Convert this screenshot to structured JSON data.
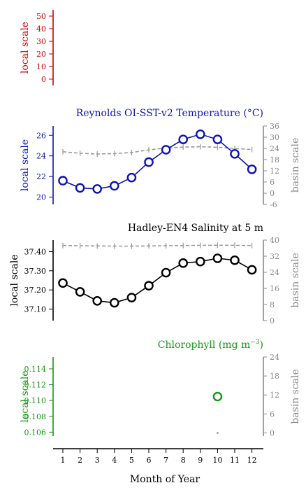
{
  "figure": {
    "xlabel": "Month of Year",
    "months": [
      "1",
      "2",
      "3",
      "4",
      "5",
      "6",
      "7",
      "8",
      "9",
      "10",
      "11",
      "12"
    ]
  },
  "chart_data": [
    {
      "type": "line",
      "id": "empty",
      "title": "",
      "ylabel_left": "local scale",
      "left_color": "#cc0000",
      "left_ylim": [
        -5,
        55
      ],
      "left_ticks": [
        0,
        10,
        20,
        30,
        40,
        50
      ],
      "x": [
        1,
        2,
        3,
        4,
        5,
        6,
        7,
        8,
        9,
        10,
        11,
        12
      ],
      "series": []
    },
    {
      "type": "line",
      "id": "sst",
      "title": "Reynolds OI-SST-v2 Temperature (°C)",
      "ylabel_left": "local scale",
      "ylabel_right": "basin scale",
      "left_color": "#0a14b4",
      "right_color": "#888888",
      "left_ylim": [
        19.3,
        26.9
      ],
      "left_ticks": [
        20,
        22,
        24,
        26
      ],
      "right_ylim": [
        -6,
        36
      ],
      "right_ticks": [
        -6,
        0,
        6,
        12,
        18,
        24,
        30,
        36
      ],
      "x": [
        1,
        2,
        3,
        4,
        5,
        6,
        7,
        8,
        9,
        10,
        11,
        12
      ],
      "local": [
        21.6,
        20.9,
        20.8,
        21.1,
        21.9,
        23.4,
        24.6,
        25.6,
        26.1,
        25.6,
        24.2,
        22.7
      ],
      "basin": [
        22.2,
        21.4,
        21.0,
        21.2,
        21.8,
        23.2,
        24.2,
        24.7,
        24.9,
        24.6,
        24.0,
        23.4
      ]
    },
    {
      "type": "line",
      "id": "salinity",
      "title": "Hadley-EN4 Salinity at 5 m",
      "ylabel_left": "local scale",
      "ylabel_right": "basin scale",
      "left_color": "#000000",
      "right_color": "#888888",
      "left_ylim": [
        37.04,
        37.46
      ],
      "left_ticks": [
        37.1,
        37.2,
        37.3,
        37.4
      ],
      "left_ticklabels": [
        "37.10",
        "37.20",
        "37.30",
        "37.40"
      ],
      "right_ylim": [
        0,
        40
      ],
      "right_ticks": [
        0,
        8,
        16,
        24,
        32,
        40
      ],
      "x": [
        1,
        2,
        3,
        4,
        5,
        6,
        7,
        8,
        9,
        10,
        11,
        12
      ],
      "local": [
        37.236,
        37.19,
        37.143,
        37.133,
        37.16,
        37.222,
        37.29,
        37.34,
        37.348,
        37.365,
        37.355,
        37.305
      ],
      "basin": [
        37.3,
        37.2,
        37.1,
        37.0,
        37.0,
        37.1,
        37.2,
        37.3,
        37.4,
        37.4,
        37.4,
        37.3
      ]
    },
    {
      "type": "scatter",
      "id": "chlorophyll",
      "title": "Chlorophyll (mg m",
      "title_sup": "−3",
      "title_end": ")",
      "ylabel_left": "local scale",
      "ylabel_right": "basin scale",
      "left_color": "#119911",
      "right_color": "#888888",
      "left_ylim": [
        0.1055,
        0.1155
      ],
      "left_ticks": [
        0.106,
        0.108,
        0.11,
        0.112,
        0.114
      ],
      "left_ticklabels": [
        "0.106",
        "0.108",
        "0.110",
        "0.112",
        "0.114"
      ],
      "right_ylim": [
        -1,
        24
      ],
      "right_ticks": [
        0,
        6,
        12,
        18,
        24
      ],
      "x": [
        10
      ],
      "local": [
        0.1105
      ],
      "basin": [
        0.0
      ]
    }
  ]
}
